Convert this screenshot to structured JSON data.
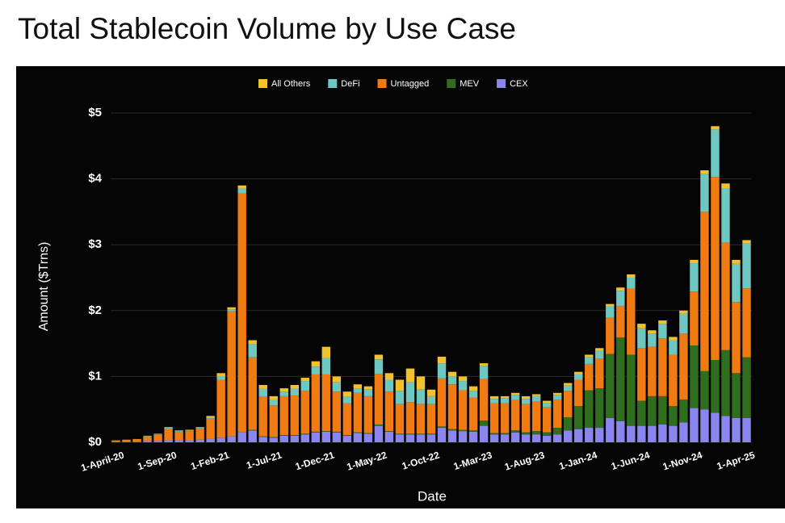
{
  "chart_data": {
    "type": "stacked_bar",
    "title": "Total Stablecoin Volume by Use Case",
    "x_label": "Date",
    "y_label": "Amount ($Trns)",
    "categories": [
      "1-April-20",
      null,
      null,
      null,
      null,
      "1-Sep-20",
      null,
      null,
      null,
      null,
      "1-Feb-21",
      null,
      null,
      null,
      null,
      "1-Jul-21",
      null,
      null,
      null,
      null,
      "1-Dec-21",
      null,
      null,
      null,
      null,
      "1-May-22",
      null,
      null,
      null,
      null,
      "1-Oct-22",
      null,
      null,
      null,
      null,
      "1-Mar-23",
      null,
      null,
      null,
      null,
      "1-Aug-23",
      null,
      null,
      null,
      null,
      "1-Jan-24",
      null,
      null,
      null,
      null,
      "1-Jun-24",
      null,
      null,
      null,
      null,
      "1-Nov-24",
      null,
      null,
      null,
      null,
      "1-Apr-25"
    ],
    "series": [
      {
        "name": "All Others",
        "color": "#f2c12e",
        "values": [
          0,
          0,
          0,
          0,
          0,
          0.01,
          0.01,
          0.01,
          0.01,
          0.02,
          0.05,
          0.03,
          0.05,
          0.06,
          0.06,
          0.05,
          0.05,
          0.06,
          0.05,
          0.08,
          0.17,
          0.09,
          0.08,
          0.06,
          0.05,
          0.07,
          0.1,
          0.17,
          0.21,
          0.2,
          0.1,
          0.1,
          0.07,
          0.07,
          0.07,
          0.04,
          0.04,
          0.03,
          0.03,
          0.04,
          0.03,
          0.03,
          0.03,
          0.04,
          0.04,
          0.04,
          0.04,
          0.04,
          0.05,
          0.05,
          0.07,
          0.05,
          0.05,
          0.05,
          0.05,
          0.05,
          0.05,
          0.05,
          0.07,
          0.06,
          0.05
        ]
      },
      {
        "name": "DeFi",
        "color": "#6fc7c2",
        "values": [
          0,
          0,
          0,
          0.01,
          0.01,
          0.02,
          0.01,
          0.01,
          0.01,
          0.02,
          0.05,
          0.03,
          0.07,
          0.2,
          0.12,
          0.09,
          0.07,
          0.1,
          0.15,
          0.12,
          0.25,
          0.14,
          0.1,
          0.07,
          0.1,
          0.22,
          0.18,
          0.2,
          0.3,
          0.22,
          0.12,
          0.23,
          0.12,
          0.14,
          0.1,
          0.2,
          0.07,
          0.08,
          0.08,
          0.08,
          0.08,
          0.07,
          0.07,
          0.08,
          0.08,
          0.1,
          0.12,
          0.17,
          0.23,
          0.17,
          0.3,
          0.2,
          0.22,
          0.22,
          0.3,
          0.43,
          0.58,
          0.72,
          0.83,
          0.58,
          0.68
        ]
      },
      {
        "name": "Untagged",
        "color": "#f07b12",
        "values": [
          0.02,
          0.03,
          0.04,
          0.07,
          0.1,
          0.17,
          0.13,
          0.14,
          0.17,
          0.31,
          0.88,
          1.9,
          3.63,
          1.1,
          0.6,
          0.48,
          0.59,
          0.6,
          0.65,
          0.87,
          0.86,
          0.61,
          0.48,
          0.6,
          0.56,
          0.77,
          0.6,
          0.45,
          0.48,
          0.45,
          0.45,
          0.73,
          0.68,
          0.6,
          0.5,
          0.63,
          0.45,
          0.45,
          0.46,
          0.43,
          0.45,
          0.38,
          0.43,
          0.4,
          0.4,
          0.4,
          0.45,
          0.55,
          0.48,
          1.0,
          0.8,
          0.75,
          0.88,
          0.78,
          1.0,
          0.82,
          2.42,
          2.78,
          1.63,
          1.08,
          1.05
        ]
      },
      {
        "name": "MEV",
        "color": "#2f6e1e",
        "values": [
          0,
          0,
          0,
          0,
          0,
          0,
          0,
          0,
          0,
          0,
          0,
          0,
          0,
          0.01,
          0.01,
          0.01,
          0.01,
          0.01,
          0.01,
          0.01,
          0.01,
          0.01,
          0.01,
          0.01,
          0.01,
          0.02,
          0.01,
          0.01,
          0.01,
          0.01,
          0.01,
          0.02,
          0.02,
          0.02,
          0.02,
          0.08,
          0.02,
          0.02,
          0.03,
          0.03,
          0.05,
          0.05,
          0.1,
          0.2,
          0.35,
          0.57,
          0.6,
          0.97,
          1.27,
          1.08,
          0.38,
          0.45,
          0.43,
          0.3,
          0.35,
          0.95,
          0.58,
          0.8,
          1.0,
          0.68,
          0.92
        ]
      },
      {
        "name": "CEX",
        "color": "#8b85f0",
        "values": [
          0.01,
          0.01,
          0.01,
          0.02,
          0.02,
          0.03,
          0.03,
          0.03,
          0.04,
          0.05,
          0.07,
          0.09,
          0.15,
          0.18,
          0.08,
          0.07,
          0.1,
          0.1,
          0.12,
          0.15,
          0.16,
          0.15,
          0.1,
          0.14,
          0.13,
          0.25,
          0.16,
          0.12,
          0.12,
          0.12,
          0.12,
          0.22,
          0.18,
          0.17,
          0.16,
          0.25,
          0.12,
          0.12,
          0.15,
          0.12,
          0.12,
          0.1,
          0.12,
          0.18,
          0.2,
          0.22,
          0.22,
          0.37,
          0.32,
          0.25,
          0.25,
          0.25,
          0.27,
          0.25,
          0.3,
          0.52,
          0.5,
          0.45,
          0.4,
          0.37,
          0.37
        ]
      }
    ],
    "ylim": [
      0,
      5
    ],
    "yticks": [
      {
        "value": 0,
        "label": "$0"
      },
      {
        "value": 1,
        "label": "$1"
      },
      {
        "value": 2,
        "label": "$2"
      },
      {
        "value": 3,
        "label": "$3"
      },
      {
        "value": 4,
        "label": "$4"
      },
      {
        "value": 5,
        "label": "$5"
      }
    ],
    "grid": true,
    "legend": "top"
  }
}
